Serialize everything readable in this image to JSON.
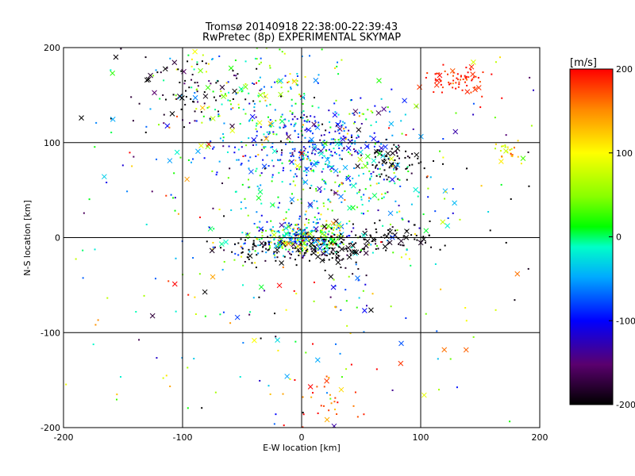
{
  "chart_data": {
    "type": "scatter",
    "title": "Tromsø 20140918 22:38:00-22:39:43",
    "subtitle": "RwPretec (8p) EXPERIMENTAL SKYMAP",
    "xlabel": "E-W location [km]",
    "ylabel": "N-S location [km]",
    "xlim": [
      -200,
      200
    ],
    "ylim": [
      -200,
      200
    ],
    "xticks": [
      "-200",
      "-100",
      "0",
      "100",
      "200"
    ],
    "yticks": [
      "-200",
      "-100",
      "0",
      "100",
      "200"
    ],
    "grid": true,
    "colorbar": {
      "label": "[m/s]",
      "range": [
        -200,
        200
      ],
      "ticks": [
        "-200",
        "-100",
        "0",
        "100",
        "200"
      ],
      "colormap": "rainbow (black-purple-blue-cyan-green-yellow-red)"
    },
    "point_groups": [
      {
        "center": [
          0,
          0
        ],
        "spread": [
          22,
          8
        ],
        "count": 320,
        "velocity": -10,
        "velocity_spread": 80
      },
      {
        "center": [
          25,
          -12
        ],
        "spread": [
          22,
          10
        ],
        "count": 120,
        "velocity": -200,
        "velocity_spread": 15
      },
      {
        "center": [
          -35,
          -12
        ],
        "spread": [
          20,
          6
        ],
        "count": 60,
        "velocity": -200,
        "velocity_spread": 15
      },
      {
        "center": [
          75,
          0
        ],
        "spread": [
          20,
          8
        ],
        "count": 60,
        "velocity": -200,
        "velocity_spread": 15
      },
      {
        "center": [
          10,
          100
        ],
        "spread": [
          35,
          20
        ],
        "count": 280,
        "velocity": -90,
        "velocity_spread": 50
      },
      {
        "center": [
          20,
          60
        ],
        "spread": [
          50,
          40
        ],
        "count": 260,
        "velocity": -20,
        "velocity_spread": 60
      },
      {
        "center": [
          -40,
          150
        ],
        "spread": [
          40,
          30
        ],
        "count": 180,
        "velocity": 0,
        "velocity_spread": 70
      },
      {
        "center": [
          -100,
          160
        ],
        "spread": [
          25,
          20
        ],
        "count": 80,
        "velocity": -190,
        "velocity_spread": 20
      },
      {
        "center": [
          80,
          80
        ],
        "spread": [
          15,
          10
        ],
        "count": 70,
        "velocity": -200,
        "velocity_spread": 15
      },
      {
        "center": [
          130,
          165
        ],
        "spread": [
          12,
          8
        ],
        "count": 70,
        "velocity": 190,
        "velocity_spread": 15
      },
      {
        "center": [
          175,
          90
        ],
        "spread": [
          8,
          6
        ],
        "count": 25,
        "velocity": 110,
        "velocity_spread": 30
      },
      {
        "center": [
          20,
          -170
        ],
        "spread": [
          20,
          15
        ],
        "count": 30,
        "velocity": 180,
        "velocity_spread": 30
      },
      {
        "center": [
          0,
          0
        ],
        "spread": [
          110,
          110
        ],
        "count": 420,
        "velocity": 0,
        "velocity_spread": 120
      }
    ]
  }
}
